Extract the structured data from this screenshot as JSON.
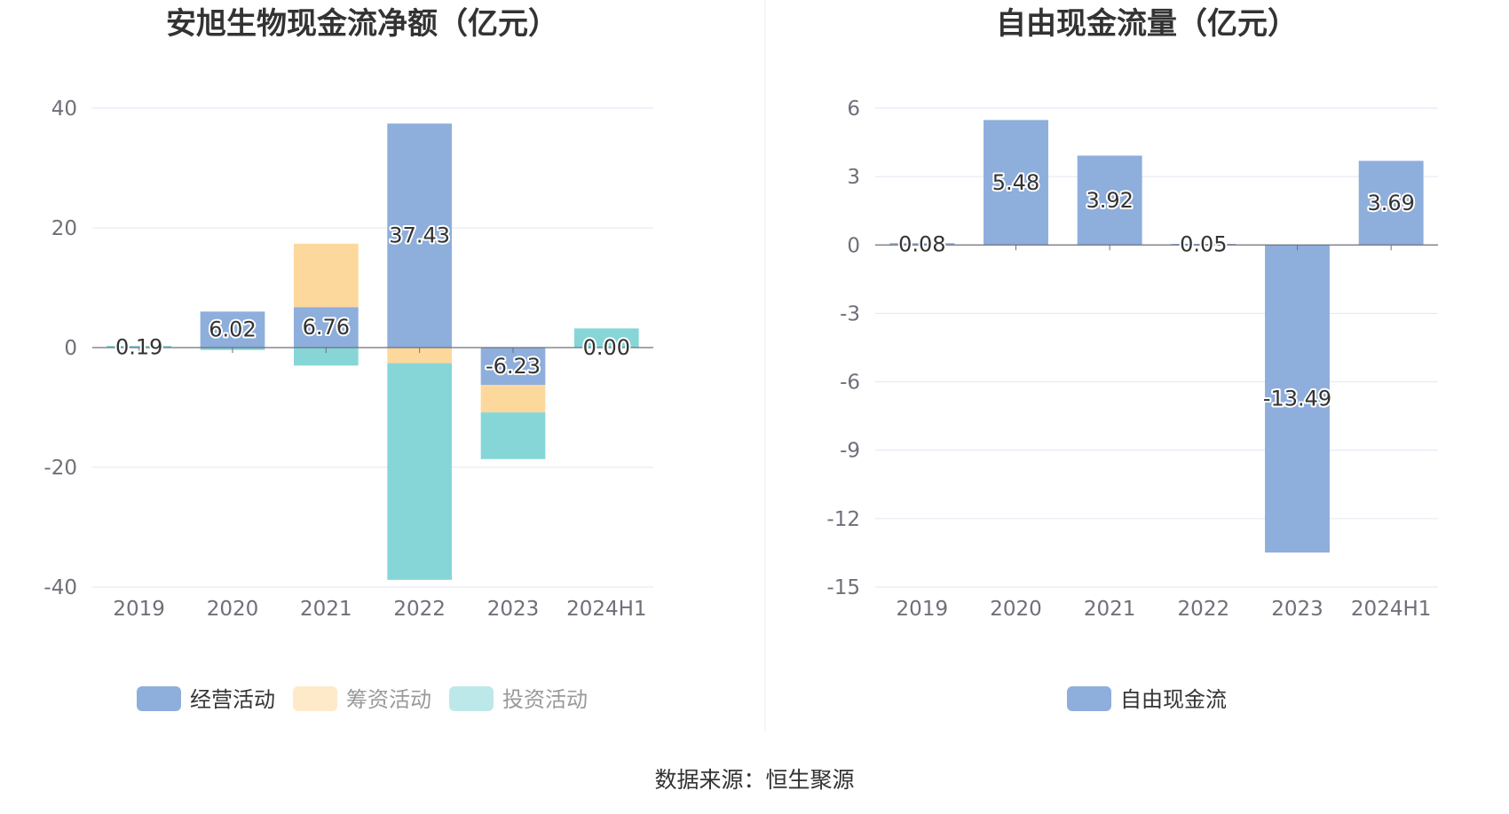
{
  "source_text": "数据来源：恒生聚源",
  "chart_data": [
    {
      "type": "bar",
      "stacked": true,
      "title": "安旭生物现金流净额（亿元）",
      "categories": [
        "2019",
        "2020",
        "2021",
        "2022",
        "2023",
        "2024H1"
      ],
      "ylim": [
        -40,
        40
      ],
      "yticks": [
        40,
        20,
        0,
        -20,
        -40
      ],
      "grid": true,
      "legend_position": "bottom",
      "series": [
        {
          "name": "经营活动",
          "color": "#8eaedc",
          "values": [
            0.19,
            6.02,
            6.76,
            37.43,
            -6.23,
            0.0
          ]
        },
        {
          "name": "筹资活动",
          "color": "#fdd89c",
          "values": [
            0.0,
            0.0,
            10.6,
            -2.6,
            -4.6,
            0.0
          ]
        },
        {
          "name": "投资活动",
          "color": "#86d6d8",
          "values": [
            0.1,
            -0.4,
            -3.0,
            -36.2,
            -7.8,
            3.2
          ]
        }
      ],
      "data_labels": [
        "0.19",
        "6.02",
        "6.76",
        "37.43",
        "-6.23",
        "0.00"
      ]
    },
    {
      "type": "bar",
      "title": "自由现金流量（亿元）",
      "categories": [
        "2019",
        "2020",
        "2021",
        "2022",
        "2023",
        "2024H1"
      ],
      "ylim": [
        -15,
        6
      ],
      "yticks": [
        6,
        3,
        0,
        -3,
        -6,
        -9,
        -12,
        -15
      ],
      "grid": true,
      "legend_position": "bottom",
      "series": [
        {
          "name": "自由现金流",
          "color": "#8eaedc",
          "values": [
            0.08,
            5.48,
            3.92,
            0.05,
            -13.49,
            3.69
          ]
        }
      ],
      "data_labels": [
        "0.08",
        "5.48",
        "3.92",
        "0.05",
        "-13.49",
        "3.69"
      ]
    }
  ]
}
